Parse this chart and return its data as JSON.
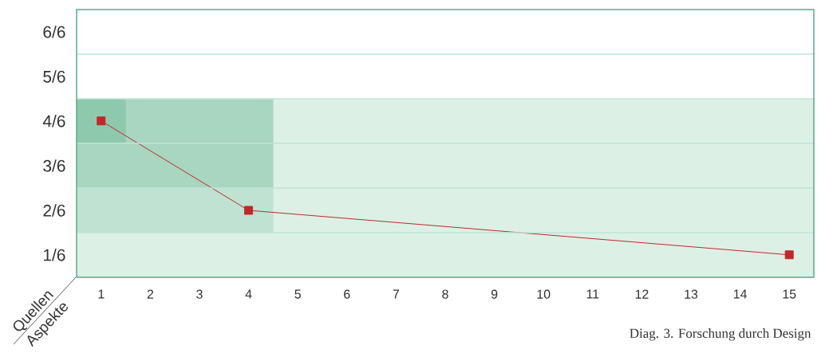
{
  "chart_data": {
    "type": "line",
    "xlabel": "Aspekte",
    "ylabel": "Quellen",
    "annotations": [
      "Diag. 3. Forschung durch Design"
    ],
    "xlim": [
      0.5,
      15.5
    ],
    "ylim": [
      0.083,
      1.083
    ],
    "xticks": [
      1,
      2,
      3,
      4,
      5,
      6,
      7,
      8,
      9,
      10,
      11,
      12,
      13,
      14,
      15
    ],
    "yticks": [
      {
        "value": 0.167,
        "label": "1/6"
      },
      {
        "value": 0.333,
        "label": "2/6"
      },
      {
        "value": 0.5,
        "label": "3/6"
      },
      {
        "value": 0.667,
        "label": "4/6"
      },
      {
        "value": 0.833,
        "label": "5/6"
      },
      {
        "value": 1,
        "label": "6/6"
      }
    ],
    "grid": "y",
    "series": [
      {
        "color": "#ddf0e6",
        "x": [
          0.5,
          15.5
        ],
        "values": [
          null,
          null
        ],
        "lower": [
          0.083,
          0.083
        ],
        "upper": [
          0.75,
          0.75
        ]
      },
      {
        "color": "#c0e2d2",
        "x": [
          0.5,
          4.5
        ],
        "values": [
          null,
          null
        ],
        "lower": [
          0.25,
          0.25
        ],
        "upper": [
          0.75,
          0.75
        ]
      },
      {
        "color": "#a8d6c0",
        "x": [
          0.5,
          4.5
        ],
        "values": [
          null,
          null
        ],
        "lower": [
          0.417,
          0.417
        ],
        "upper": [
          0.75,
          0.75
        ]
      },
      {
        "color": "#8fc9ad",
        "x": [
          0.5,
          1.5
        ],
        "values": [
          null,
          null
        ],
        "lower": [
          0.583,
          0.583
        ],
        "upper": [
          0.75,
          0.75
        ]
      },
      {
        "color": "#c0282a",
        "x": [
          1,
          4,
          15
        ],
        "values": [
          0.667,
          0.333,
          0.167
        ],
        "marker": "square",
        "line_style": "solid"
      }
    ]
  }
}
